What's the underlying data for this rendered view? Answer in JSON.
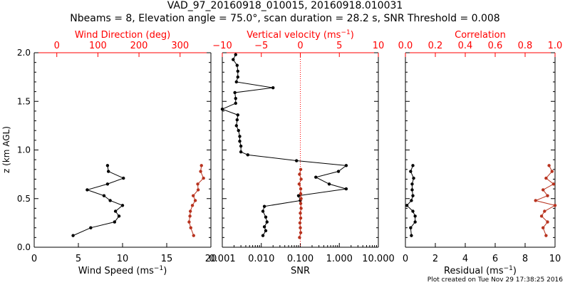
{
  "title": {
    "line1": "VAD_97_20160918_010015, 20160918.010031",
    "line2": "Nbeams = 8, Elevation angle = 75.0°, scan duration = 28.2 s, SNR Threshold = 0.008"
  },
  "footer": "Plot created on Tue Nov 29 17:38:25 2016",
  "colors": {
    "black": "#000000",
    "red": "#b8331f",
    "top_axis": "#ff0000"
  },
  "chart_data": [
    {
      "type": "line",
      "panel": "wind",
      "ylabel": "z (km AGL)",
      "ylim": [
        0,
        2.0
      ],
      "yticks": [
        0.0,
        0.5,
        1.0,
        1.5,
        2.0
      ],
      "ytick_labels": [
        "0.0",
        "0.5",
        "1.0",
        "1.5",
        "2.0"
      ],
      "bottom_axis": {
        "label": "Wind Speed (ms",
        "label_sup": "−1",
        "label_close": ")",
        "range": [
          0,
          20
        ],
        "ticks": [
          0,
          5,
          10,
          15,
          20
        ],
        "tick_labels": [
          "0",
          "5",
          "10",
          "15",
          "20"
        ]
      },
      "top_axis": {
        "label": "Wind Direction (deg)",
        "range": [
          -55,
          375
        ],
        "ticks": [
          0,
          100,
          200,
          300
        ],
        "tick_labels": [
          "0",
          "100",
          "200",
          "300"
        ]
      },
      "series": [
        {
          "name": "Wind Speed",
          "axis": "bottom",
          "color": "black",
          "z": [
            0.84,
            0.78,
            0.71,
            0.65,
            0.59,
            0.53,
            0.48,
            0.43,
            0.37,
            0.32,
            0.26,
            0.2,
            0.12
          ],
          "values": [
            8.3,
            8.4,
            10.1,
            8.3,
            6.0,
            7.9,
            8.6,
            10.0,
            9.2,
            9.6,
            9.1,
            6.4,
            4.4
          ]
        },
        {
          "name": "Wind Direction",
          "axis": "top",
          "color": "red",
          "z": [
            0.84,
            0.78,
            0.71,
            0.65,
            0.59,
            0.53,
            0.48,
            0.43,
            0.37,
            0.32,
            0.26,
            0.2,
            0.12
          ],
          "values": [
            352,
            350,
            357,
            343,
            344,
            332,
            337,
            330,
            325,
            324,
            322,
            326,
            333
          ]
        }
      ]
    },
    {
      "type": "line",
      "panel": "snr",
      "ylim": [
        0,
        2.0
      ],
      "bottom_axis": {
        "label": "SNR",
        "scale": "log",
        "range": [
          0.001,
          10
        ],
        "ticks": [
          0.001,
          0.01,
          0.1,
          1,
          10
        ],
        "tick_labels": [
          "0.001",
          "0.010",
          "0.100",
          "1.000",
          "10.000"
        ]
      },
      "top_axis": {
        "label": "Vertical velocity (ms",
        "label_sup": "−1",
        "label_close": ")",
        "range": [
          -10,
          10
        ],
        "ticks": [
          -10,
          -5,
          0,
          5,
          10
        ],
        "tick_labels": [
          "−10",
          "−5",
          "0",
          "5",
          "10"
        ]
      },
      "zero_line": 0,
      "series": [
        {
          "name": "SNR",
          "axis": "bottom",
          "color": "black",
          "z": [
            1.98,
            1.93,
            1.87,
            1.81,
            1.75,
            1.7,
            1.64,
            1.59,
            1.53,
            1.48,
            1.42,
            1.36,
            1.31,
            1.25,
            1.2,
            1.14,
            1.09,
            1.04,
            0.98,
            0.95,
            0.89,
            0.84,
            0.78,
            0.72,
            0.65,
            0.6,
            0.53,
            0.48,
            0.42,
            0.37,
            0.31,
            0.26,
            0.21,
            0.17,
            0.12
          ],
          "values": [
            0.0022,
            0.0019,
            0.0024,
            0.0025,
            0.0025,
            0.0023,
            0.02,
            0.0021,
            0.0022,
            0.0022,
            0.001,
            0.0025,
            0.0024,
            0.0023,
            0.0026,
            0.0028,
            0.0028,
            0.003,
            0.003,
            0.0045,
            0.08,
            1.5,
            0.95,
            0.25,
            0.55,
            1.5,
            0.09,
            0.1,
            0.012,
            0.011,
            0.013,
            0.014,
            0.012,
            0.013,
            0.011
          ]
        },
        {
          "name": "Vertical velocity",
          "axis": "top",
          "color": "red",
          "z": [
            0.8,
            0.75,
            0.7,
            0.65,
            0.6,
            0.55,
            0.5,
            0.45,
            0.4,
            0.35,
            0.3,
            0.25,
            0.2,
            0.15,
            0.1
          ],
          "values": [
            0.05,
            -0.1,
            0.1,
            -0.15,
            0.05,
            0.05,
            0.1,
            0.05,
            0.1,
            0.0,
            0.05,
            -0.05,
            0.0,
            0.05,
            -0.1
          ]
        }
      ]
    },
    {
      "type": "line",
      "panel": "residual",
      "ylim": [
        0,
        2.0
      ],
      "bottom_axis": {
        "label": "Residual (ms",
        "label_sup": "−1",
        "label_close": ")",
        "range": [
          0,
          10
        ],
        "ticks": [
          0,
          2,
          4,
          6,
          8,
          10
        ],
        "tick_labels": [
          "0",
          "2",
          "4",
          "6",
          "8",
          "10"
        ]
      },
      "top_axis": {
        "label": "Correlation",
        "range": [
          0,
          1
        ],
        "ticks": [
          0,
          0.2,
          0.4,
          0.6,
          0.8,
          1.0
        ],
        "tick_labels": [
          "0.0",
          "0.2",
          "0.4",
          "0.6",
          "0.8",
          "1.0"
        ]
      },
      "series": [
        {
          "name": "Residual",
          "axis": "bottom",
          "color": "black",
          "z": [
            0.84,
            0.78,
            0.71,
            0.65,
            0.59,
            0.53,
            0.48,
            0.43,
            0.37,
            0.32,
            0.26,
            0.2,
            0.12
          ],
          "values": [
            0.5,
            0.35,
            0.55,
            0.45,
            0.45,
            0.5,
            0.4,
            0.1,
            0.5,
            0.65,
            0.65,
            0.35,
            0.4
          ]
        },
        {
          "name": "Correlation",
          "axis": "top",
          "color": "red",
          "z": [
            0.84,
            0.78,
            0.71,
            0.65,
            0.59,
            0.53,
            0.48,
            0.43,
            0.37,
            0.32,
            0.26,
            0.2,
            0.12
          ],
          "values": [
            0.96,
            0.98,
            0.94,
            0.99,
            0.92,
            0.95,
            0.87,
            1.0,
            0.93,
            0.91,
            0.95,
            0.92,
            0.94
          ]
        }
      ]
    }
  ]
}
